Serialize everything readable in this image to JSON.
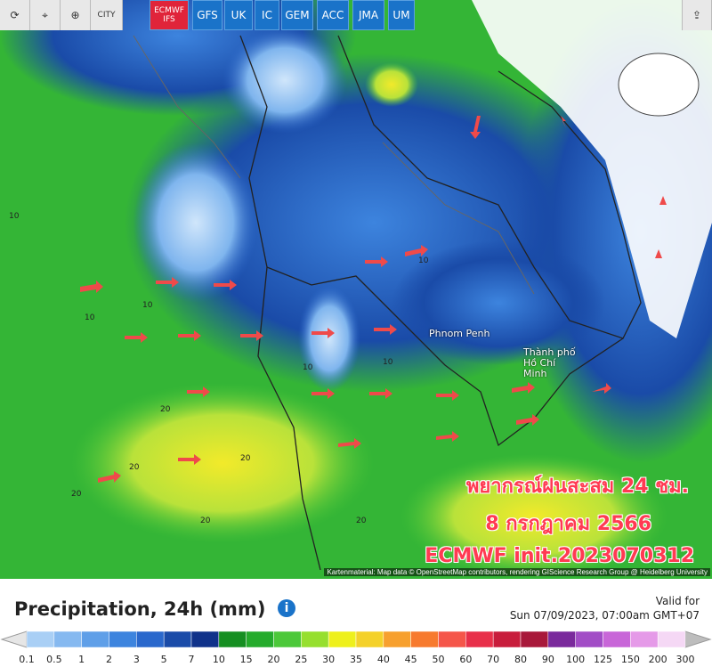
{
  "toolbar": {
    "city": "CITY",
    "models": [
      "ECMWF IFS",
      "GFS",
      "UK",
      "IC",
      "GEM",
      "ACC",
      "JMA",
      "UM"
    ]
  },
  "map": {
    "cities": [
      "Phnom Penh",
      "Thành phố Hồ Chí Minh"
    ],
    "overlay": [
      "พยากรณ์ฝนสะสม 24 ชม.",
      "8 กรกฎาคม 2566",
      "ECMWF init.2023070312"
    ],
    "contour_labels": [
      "10",
      "10",
      "10",
      "10",
      "10",
      "10",
      "20",
      "20",
      "20",
      "20",
      "20",
      "20"
    ],
    "attribution": "Kartenmaterial: Map data © OpenStreetMap contributors, rendering GIScience Research Group @ Heidelberg University"
  },
  "panel": {
    "title": "Precipitation, 24h (mm)",
    "valid_label": "Valid for",
    "valid_time": "Sun 07/09/2023, 07:00am GMT+07"
  },
  "legend": {
    "labels": [
      "0.1",
      "0.5",
      "1",
      "2",
      "3",
      "5",
      "7",
      "10",
      "15",
      "20",
      "25",
      "30",
      "35",
      "40",
      "45",
      "50",
      "60",
      "70",
      "80",
      "90",
      "100",
      "125",
      "150",
      "200",
      "300"
    ],
    "colors": [
      "#a9cff5",
      "#86b9f0",
      "#5f9fe8",
      "#3d84de",
      "#2a68cc",
      "#1a4ba8",
      "#10328a",
      "#168f22",
      "#25ab2c",
      "#4cc83a",
      "#96df2e",
      "#eef01c",
      "#f4d12a",
      "#f7a02e",
      "#f77a2e",
      "#f5564a",
      "#e8304a",
      "#c81d3c",
      "#a8183a",
      "#7a2a9c",
      "#a24dc6",
      "#c866d8",
      "#e59ae8",
      "#f5d8f5"
    ]
  }
}
